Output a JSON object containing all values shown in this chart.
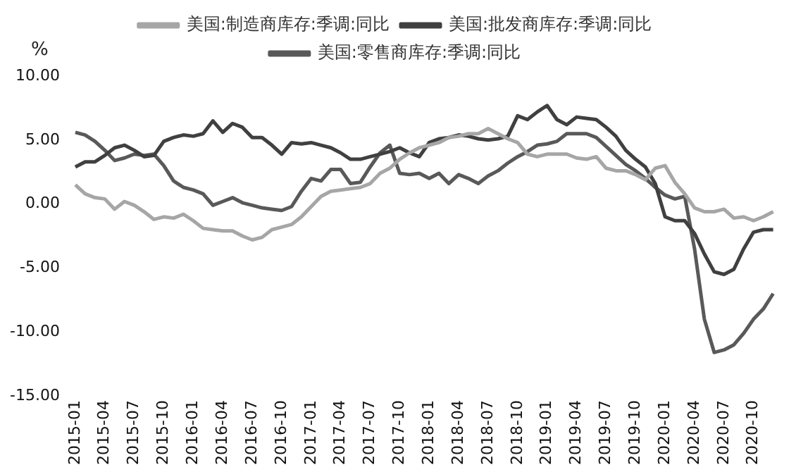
{
  "chart_data": {
    "type": "line",
    "ylabel": "%",
    "categories": [
      "2015-01",
      null,
      null,
      "2015-04",
      null,
      null,
      "2015-07",
      null,
      null,
      "2015-10",
      null,
      null,
      "2016-01",
      null,
      null,
      "2016-04",
      null,
      null,
      "2016-07",
      null,
      null,
      "2016-10",
      null,
      null,
      "2017-01",
      null,
      null,
      "2017-04",
      null,
      null,
      "2017-07",
      null,
      null,
      "2017-10",
      null,
      null,
      "2018-01",
      null,
      null,
      "2018-04",
      null,
      null,
      "2018-07",
      null,
      null,
      "2018-10",
      null,
      null,
      "2019-01",
      null,
      null,
      "2019-04",
      null,
      null,
      "2019-07",
      null,
      null,
      "2019-10",
      null,
      null,
      "2020-01",
      null,
      null,
      "2020-04",
      null,
      null,
      "2020-07",
      null,
      null,
      "2020-10",
      null,
      null
    ],
    "series": [
      {
        "name": "美国:制造商库存:季调:同比",
        "color": "#a6a6a6",
        "values": [
          1.5,
          0.8,
          0.5,
          0.4,
          -0.4,
          0.2,
          -0.1,
          -0.6,
          -1.2,
          -1.0,
          -1.1,
          -0.8,
          -1.3,
          -1.9,
          -2.0,
          -2.1,
          -2.1,
          -2.5,
          -2.8,
          -2.6,
          -2.0,
          -1.8,
          -1.6,
          -1.0,
          -0.2,
          0.6,
          1.0,
          1.1,
          1.2,
          1.3,
          1.6,
          2.4,
          2.8,
          3.5,
          4.0,
          4.4,
          4.6,
          4.8,
          5.2,
          5.3,
          5.5,
          5.5,
          5.9,
          5.5,
          5.1,
          4.8,
          3.9,
          3.7,
          3.9,
          3.9,
          3.9,
          3.6,
          3.5,
          3.7,
          2.8,
          2.6,
          2.6,
          2.3,
          1.9,
          2.8,
          3.0,
          1.7,
          0.8,
          -0.3,
          -0.6,
          -0.6,
          -0.4,
          -1.1,
          -1.0,
          -1.3,
          -1.0,
          -0.6
        ]
      },
      {
        "name": "美国:批发商库存:季调:同比",
        "color": "#404040",
        "values": [
          2.9,
          3.3,
          3.3,
          3.8,
          4.4,
          4.6,
          4.2,
          3.7,
          3.8,
          4.9,
          5.2,
          5.4,
          5.3,
          5.5,
          6.5,
          5.6,
          6.3,
          6.0,
          5.2,
          5.2,
          4.6,
          3.9,
          4.8,
          4.7,
          4.8,
          4.6,
          4.4,
          4.0,
          3.5,
          3.5,
          3.7,
          3.9,
          4.1,
          4.4,
          4.0,
          3.7,
          4.8,
          5.1,
          5.2,
          5.4,
          5.3,
          5.1,
          5.0,
          5.1,
          5.3,
          6.9,
          6.6,
          7.2,
          7.7,
          6.6,
          6.2,
          6.8,
          6.7,
          6.6,
          6.0,
          5.3,
          4.2,
          3.5,
          2.9,
          1.6,
          -1.0,
          -1.3,
          -1.3,
          -2.3,
          -3.9,
          -5.3,
          -5.5,
          -5.1,
          -3.5,
          -2.2,
          -2.0,
          -2.0
        ]
      },
      {
        "name": "美国:零售商库存:季调:同比",
        "color": "#595959",
        "values": [
          5.6,
          5.4,
          4.9,
          4.2,
          3.4,
          3.6,
          3.9,
          3.8,
          3.9,
          3.0,
          1.8,
          1.3,
          1.1,
          0.8,
          -0.1,
          0.2,
          0.5,
          0.1,
          -0.1,
          -0.3,
          -0.4,
          -0.5,
          -0.2,
          1.0,
          2.0,
          1.8,
          2.7,
          2.7,
          1.6,
          1.7,
          2.9,
          4.0,
          4.6,
          2.4,
          2.3,
          2.4,
          2.0,
          2.4,
          1.6,
          2.3,
          2.0,
          1.6,
          2.2,
          2.6,
          3.2,
          3.7,
          4.1,
          4.6,
          4.7,
          4.9,
          5.5,
          5.5,
          5.5,
          5.2,
          4.5,
          3.8,
          3.1,
          2.6,
          2.0,
          1.3,
          0.7,
          0.4,
          0.6,
          -3.5,
          -9.0,
          -11.6,
          -11.4,
          -11.0,
          -10.1,
          -9.0,
          -8.2,
          -7.0
        ]
      }
    ],
    "ylim": [
      -15,
      10
    ],
    "yticks": [
      {
        "value": -15,
        "label": "-15.00"
      },
      {
        "value": -10,
        "label": "-10.00"
      },
      {
        "value": -5,
        "label": "-5.00"
      },
      {
        "value": 0,
        "label": "0.00"
      },
      {
        "value": 5,
        "label": "5.00"
      },
      {
        "value": 10,
        "label": "10.00"
      }
    ],
    "grid": false,
    "legend": "top",
    "marker": "none",
    "line_style": "solid"
  }
}
